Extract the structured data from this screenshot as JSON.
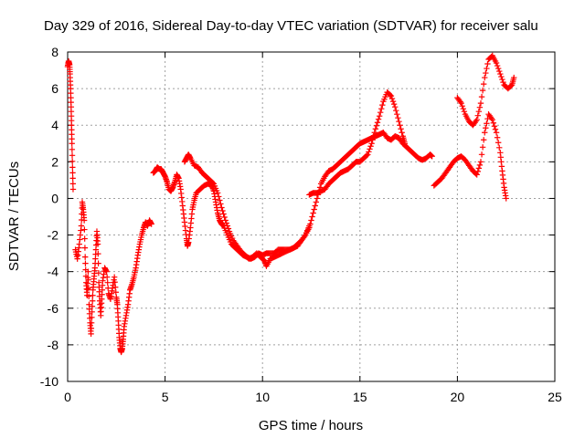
{
  "chart_data": {
    "type": "scatter",
    "title": "Day 329 of 2016, Sidereal Day-to-day VTEC variation (SDTVAR) for receiver salu",
    "xlabel": "GPS time / hours",
    "ylabel": "SDTVAR / TECUs",
    "xlim": [
      0,
      25
    ],
    "ylim": [
      -10,
      8
    ],
    "xticks": [
      0,
      5,
      10,
      15,
      20,
      25
    ],
    "yticks": [
      -10,
      -8,
      -6,
      -4,
      -2,
      0,
      2,
      4,
      6,
      8
    ],
    "grid": true,
    "marker": "+",
    "color": "#ff0000",
    "series": [
      {
        "name": "SDTVAR",
        "segments": [
          {
            "points": [
              [
                0.0,
                7.2
              ],
              [
                0.05,
                7.5
              ],
              [
                0.1,
                7.3
              ],
              [
                0.12,
                6.8
              ],
              [
                0.15,
                6.0
              ],
              [
                0.18,
                5.0
              ],
              [
                0.2,
                4.0
              ],
              [
                0.22,
                3.0
              ],
              [
                0.25,
                1.7
              ],
              [
                0.28,
                0.5
              ]
            ]
          },
          {
            "points": [
              [
                0.4,
                -2.8
              ],
              [
                0.5,
                -3.3
              ],
              [
                0.6,
                -2.5
              ],
              [
                0.7,
                -1.5
              ],
              [
                0.75,
                -0.2
              ],
              [
                0.8,
                -0.6
              ],
              [
                0.85,
                -1.2
              ],
              [
                0.9,
                -3.2
              ],
              [
                0.95,
                -4.6
              ],
              [
                1.0,
                -5.3
              ],
              [
                1.05,
                -4.0
              ],
              [
                1.1,
                -5.8
              ],
              [
                1.15,
                -6.8
              ],
              [
                1.2,
                -7.4
              ],
              [
                1.25,
                -6.2
              ],
              [
                1.3,
                -5.0
              ],
              [
                1.35,
                -4.4
              ],
              [
                1.4,
                -3.8
              ],
              [
                1.45,
                -2.8
              ],
              [
                1.5,
                -1.8
              ],
              [
                1.55,
                -2.5
              ],
              [
                1.6,
                -4.6
              ],
              [
                1.65,
                -5.6
              ],
              [
                1.7,
                -6.4
              ],
              [
                1.75,
                -5.5
              ],
              [
                1.8,
                -4.5
              ],
              [
                1.9,
                -3.8
              ],
              [
                2.0,
                -4.0
              ],
              [
                2.1,
                -5.2
              ],
              [
                2.2,
                -5.5
              ],
              [
                2.3,
                -4.9
              ],
              [
                2.4,
                -4.3
              ],
              [
                2.5,
                -5.4
              ],
              [
                2.55,
                -5.8
              ],
              [
                2.6,
                -6.7
              ],
              [
                2.65,
                -7.6
              ],
              [
                2.7,
                -8.2
              ],
              [
                2.75,
                -8.4
              ],
              [
                2.8,
                -8.2
              ],
              [
                2.85,
                -7.7
              ],
              [
                2.9,
                -7.0
              ],
              [
                3.0,
                -6.4
              ],
              [
                3.1,
                -5.8
              ],
              [
                3.2,
                -5.0
              ],
              [
                3.3,
                -4.7
              ],
              [
                3.4,
                -4.3
              ],
              [
                3.5,
                -3.8
              ],
              [
                3.6,
                -3.1
              ],
              [
                3.7,
                -2.5
              ],
              [
                3.8,
                -2.0
              ],
              [
                3.9,
                -1.6
              ],
              [
                4.0,
                -1.3
              ],
              [
                4.1,
                -1.5
              ],
              [
                4.2,
                -1.2
              ],
              [
                4.3,
                -1.4
              ]
            ]
          },
          {
            "points": [
              [
                4.4,
                1.4
              ],
              [
                4.5,
                1.5
              ],
              [
                4.6,
                1.7
              ],
              [
                4.7,
                1.6
              ],
              [
                4.8,
                1.6
              ],
              [
                4.9,
                1.4
              ],
              [
                5.0,
                1.2
              ],
              [
                5.1,
                0.9
              ],
              [
                5.2,
                0.5
              ],
              [
                5.3,
                0.4
              ],
              [
                5.4,
                0.6
              ],
              [
                5.5,
                0.9
              ],
              [
                5.6,
                1.3
              ],
              [
                5.7,
                1.1
              ],
              [
                5.8,
                0.5
              ],
              [
                5.9,
                -0.4
              ],
              [
                6.0,
                -1.3
              ],
              [
                6.1,
                -2.2
              ],
              [
                6.15,
                -2.6
              ],
              [
                6.2,
                -2.4
              ],
              [
                6.3,
                -1.6
              ],
              [
                6.4,
                -0.6
              ],
              [
                6.5,
                -0.1
              ],
              [
                6.6,
                0.3
              ],
              [
                6.8,
                0.5
              ],
              [
                7.0,
                0.7
              ],
              [
                7.2,
                0.8
              ],
              [
                7.4,
                0.7
              ],
              [
                7.5,
                0.4
              ],
              [
                7.6,
                -0.2
              ],
              [
                7.7,
                -0.8
              ],
              [
                7.8,
                -1.2
              ],
              [
                7.9,
                -1.4
              ],
              [
                8.0,
                -1.5
              ],
              [
                8.2,
                -2.0
              ],
              [
                8.4,
                -2.5
              ],
              [
                8.6,
                -2.7
              ],
              [
                8.8,
                -2.9
              ],
              [
                9.0,
                -3.1
              ],
              [
                9.2,
                -3.2
              ],
              [
                9.4,
                -3.3
              ],
              [
                9.6,
                -3.2
              ],
              [
                9.8,
                -3.0
              ],
              [
                10.0,
                -3.1
              ],
              [
                10.2,
                -3.0
              ],
              [
                10.4,
                -3.0
              ],
              [
                10.6,
                -3.0
              ],
              [
                10.8,
                -2.8
              ],
              [
                11.0,
                -2.8
              ],
              [
                11.2,
                -2.8
              ],
              [
                11.4,
                -2.8
              ],
              [
                11.6,
                -2.7
              ],
              [
                11.8,
                -2.6
              ],
              [
                12.0,
                -2.3
              ],
              [
                12.2,
                -2.0
              ],
              [
                12.4,
                -1.5
              ]
            ]
          },
          {
            "points": [
              [
                6.0,
                2.0
              ],
              [
                6.1,
                2.2
              ],
              [
                6.2,
                2.4
              ],
              [
                6.3,
                2.2
              ],
              [
                6.5,
                1.8
              ],
              [
                6.7,
                1.7
              ],
              [
                6.9,
                1.4
              ],
              [
                7.1,
                1.2
              ],
              [
                7.3,
                1.0
              ],
              [
                7.5,
                0.8
              ],
              [
                7.7,
                0.3
              ],
              [
                7.9,
                -0.5
              ],
              [
                8.1,
                -1.2
              ],
              [
                8.3,
                -1.8
              ],
              [
                8.5,
                -2.3
              ],
              [
                8.7,
                -2.6
              ],
              [
                8.9,
                -2.9
              ],
              [
                9.1,
                -3.1
              ],
              [
                9.3,
                -3.3
              ],
              [
                9.5,
                -3.2
              ],
              [
                9.7,
                -3.0
              ],
              [
                9.9,
                -3.2
              ],
              [
                10.1,
                -3.4
              ],
              [
                10.2,
                -3.7
              ],
              [
                10.4,
                -3.3
              ],
              [
                10.6,
                -3.2
              ],
              [
                10.8,
                -3.1
              ],
              [
                11.0,
                -3.0
              ],
              [
                11.2,
                -2.9
              ],
              [
                11.4,
                -2.8
              ],
              [
                11.6,
                -2.7
              ],
              [
                11.8,
                -2.5
              ],
              [
                12.0,
                -2.3
              ],
              [
                12.2,
                -2.0
              ],
              [
                12.4,
                -1.6
              ],
              [
                12.6,
                -0.8
              ],
              [
                12.8,
                0.0
              ],
              [
                13.0,
                0.8
              ],
              [
                13.2,
                1.2
              ],
              [
                13.4,
                1.5
              ],
              [
                13.6,
                1.6
              ],
              [
                13.8,
                1.8
              ],
              [
                14.0,
                2.0
              ],
              [
                14.2,
                2.2
              ],
              [
                14.4,
                2.4
              ],
              [
                14.6,
                2.6
              ],
              [
                14.8,
                2.8
              ],
              [
                15.0,
                3.0
              ],
              [
                15.2,
                3.1
              ],
              [
                15.4,
                3.2
              ],
              [
                15.6,
                3.3
              ],
              [
                15.8,
                3.4
              ],
              [
                16.0,
                3.5
              ],
              [
                16.2,
                3.6
              ],
              [
                16.4,
                3.3
              ],
              [
                16.6,
                3.2
              ],
              [
                16.8,
                3.4
              ],
              [
                17.0,
                3.3
              ],
              [
                17.2,
                3.0
              ],
              [
                17.4,
                2.8
              ],
              [
                17.6,
                2.6
              ],
              [
                17.8,
                2.4
              ],
              [
                18.0,
                2.2
              ],
              [
                18.2,
                2.1
              ],
              [
                18.4,
                2.2
              ],
              [
                18.6,
                2.4
              ],
              [
                18.7,
                2.3
              ]
            ]
          },
          {
            "points": [
              [
                12.4,
                0.2
              ],
              [
                12.6,
                0.3
              ],
              [
                12.8,
                0.3
              ],
              [
                13.0,
                0.4
              ],
              [
                13.2,
                0.5
              ],
              [
                13.4,
                0.8
              ],
              [
                13.6,
                1.0
              ],
              [
                13.8,
                1.2
              ],
              [
                14.0,
                1.4
              ],
              [
                14.2,
                1.5
              ],
              [
                14.4,
                1.6
              ],
              [
                14.6,
                1.8
              ],
              [
                14.8,
                2.0
              ],
              [
                15.0,
                2.0
              ],
              [
                15.2,
                2.2
              ],
              [
                15.4,
                2.4
              ],
              [
                15.6,
                3.0
              ],
              [
                15.8,
                3.8
              ],
              [
                16.0,
                4.5
              ],
              [
                16.2,
                5.3
              ],
              [
                16.4,
                5.8
              ],
              [
                16.6,
                5.6
              ],
              [
                16.8,
                5.0
              ],
              [
                17.0,
                4.2
              ],
              [
                17.2,
                3.4
              ],
              [
                17.3,
                3.0
              ]
            ]
          },
          {
            "points": [
              [
                18.8,
                0.7
              ],
              [
                19.0,
                0.9
              ],
              [
                19.2,
                1.1
              ],
              [
                19.4,
                1.4
              ],
              [
                19.6,
                1.7
              ],
              [
                19.8,
                2.0
              ],
              [
                20.0,
                2.2
              ],
              [
                20.2,
                2.3
              ],
              [
                20.4,
                2.1
              ],
              [
                20.6,
                1.8
              ],
              [
                20.8,
                1.5
              ],
              [
                21.0,
                1.3
              ],
              [
                21.2,
                2.0
              ],
              [
                21.4,
                3.6
              ],
              [
                21.6,
                4.6
              ],
              [
                21.8,
                4.3
              ],
              [
                22.0,
                3.6
              ],
              [
                22.2,
                2.5
              ],
              [
                22.3,
                1.5
              ],
              [
                22.4,
                0.6
              ],
              [
                22.5,
                0.0
              ]
            ]
          },
          {
            "points": [
              [
                20.0,
                5.5
              ],
              [
                20.2,
                5.2
              ],
              [
                20.4,
                4.6
              ],
              [
                20.6,
                4.2
              ],
              [
                20.8,
                4.0
              ],
              [
                21.0,
                4.3
              ],
              [
                21.2,
                5.2
              ],
              [
                21.4,
                6.6
              ],
              [
                21.6,
                7.6
              ],
              [
                21.8,
                7.8
              ],
              [
                22.0,
                7.4
              ],
              [
                22.2,
                6.8
              ],
              [
                22.4,
                6.2
              ],
              [
                22.6,
                6.0
              ],
              [
                22.8,
                6.2
              ],
              [
                22.9,
                6.6
              ]
            ]
          }
        ]
      }
    ]
  }
}
